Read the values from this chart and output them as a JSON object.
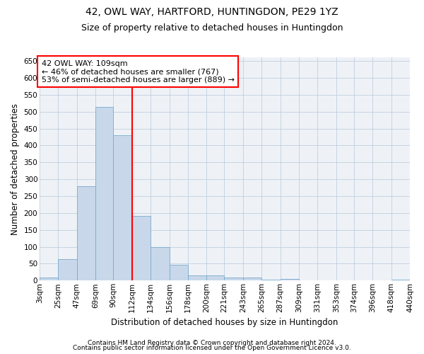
{
  "title": "42, OWL WAY, HARTFORD, HUNTINGDON, PE29 1YZ",
  "subtitle": "Size of property relative to detached houses in Huntingdon",
  "xlabel": "Distribution of detached houses by size in Huntingdon",
  "ylabel": "Number of detached properties",
  "bar_color": "#c8d8ea",
  "bar_edge_color": "#7aaace",
  "background_color": "#eef2f7",
  "vline_color": "red",
  "annotation_text": "42 OWL WAY: 109sqm\n← 46% of detached houses are smaller (767)\n53% of semi-detached houses are larger (889) →",
  "annotation_box_color": "white",
  "annotation_box_edge": "red",
  "footer1": "Contains HM Land Registry data © Crown copyright and database right 2024.",
  "footer2": "Contains public sector information licensed under the Open Government Licence v3.0.",
  "bin_edges": [
    3,
    25,
    47,
    69,
    90,
    112,
    134,
    156,
    178,
    200,
    221,
    243,
    265,
    287,
    309,
    331,
    353,
    374,
    396,
    418,
    440
  ],
  "bar_heights": [
    8,
    63,
    280,
    515,
    430,
    192,
    100,
    47,
    15,
    15,
    8,
    8,
    2,
    5,
    1,
    0,
    0,
    0,
    0,
    2
  ],
  "ylim": [
    0,
    660
  ],
  "yticks": [
    0,
    50,
    100,
    150,
    200,
    250,
    300,
    350,
    400,
    450,
    500,
    550,
    600,
    650
  ],
  "grid_color": "#b8c8d8",
  "title_fontsize": 10,
  "subtitle_fontsize": 9,
  "xlabel_fontsize": 8.5,
  "ylabel_fontsize": 8.5,
  "tick_fontsize": 7.5,
  "annotation_fontsize": 8,
  "footer_fontsize": 6.5
}
